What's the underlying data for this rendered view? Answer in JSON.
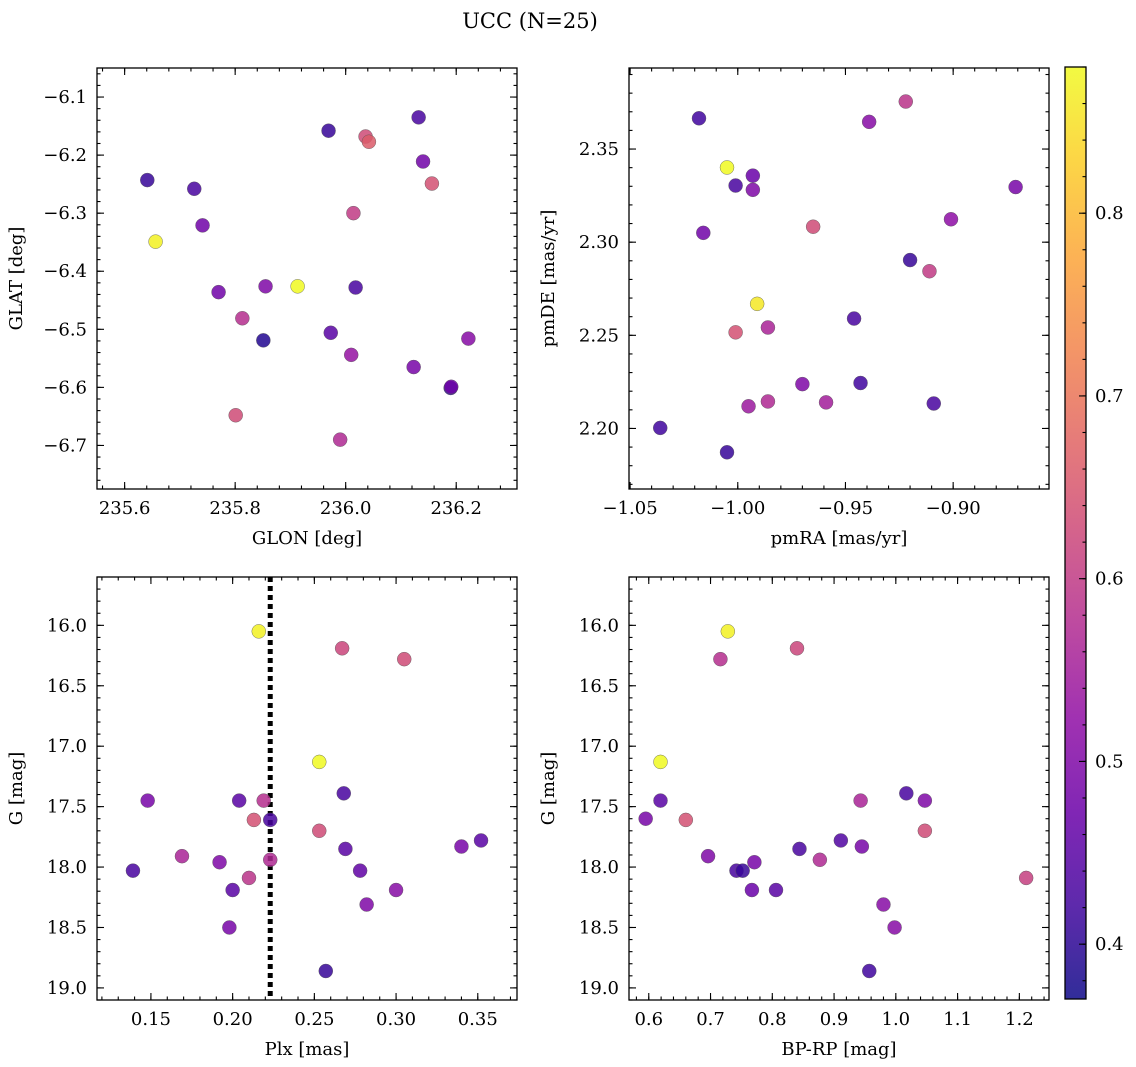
{
  "title": "UCC (N=25)",
  "colorbar": {
    "range": [
      0.37,
      0.88
    ],
    "ticks": [
      "0.4",
      "0.5",
      "0.6",
      "0.7",
      "0.8"
    ],
    "colormap": "plasma"
  },
  "chart_data": [
    {
      "type": "scatter",
      "xlabel": "GLON [deg]",
      "ylabel": "GLAT [deg]",
      "xlim": [
        235.55,
        236.31
      ],
      "ylim": [
        -6.775,
        -6.05
      ],
      "xticks": [
        "235.6",
        "235.8",
        "236.0",
        "236.2"
      ],
      "yticks": [
        "−6.1",
        "−6.2",
        "−6.3",
        "−6.4",
        "−6.5",
        "−6.6",
        "−6.7"
      ],
      "points": [
        {
          "x": 235.641,
          "y": -6.243,
          "c": 0.41
        },
        {
          "x": 235.656,
          "y": -6.349,
          "c": 0.87
        },
        {
          "x": 235.726,
          "y": -6.258,
          "c": 0.43
        },
        {
          "x": 235.741,
          "y": -6.321,
          "c": 0.48
        },
        {
          "x": 235.77,
          "y": -6.436,
          "c": 0.48
        },
        {
          "x": 235.801,
          "y": -6.648,
          "c": 0.63
        },
        {
          "x": 235.813,
          "y": -6.481,
          "c": 0.58
        },
        {
          "x": 235.851,
          "y": -6.519,
          "c": 0.39
        },
        {
          "x": 235.855,
          "y": -6.426,
          "c": 0.5
        },
        {
          "x": 235.913,
          "y": -6.426,
          "c": 0.88
        },
        {
          "x": 235.969,
          "y": -6.158,
          "c": 0.41
        },
        {
          "x": 235.973,
          "y": -6.506,
          "c": 0.45
        },
        {
          "x": 235.99,
          "y": -6.69,
          "c": 0.57
        },
        {
          "x": 236.01,
          "y": -6.544,
          "c": 0.53
        },
        {
          "x": 236.014,
          "y": -6.3,
          "c": 0.6
        },
        {
          "x": 236.018,
          "y": -6.428,
          "c": 0.43
        },
        {
          "x": 236.036,
          "y": -6.168,
          "c": 0.63
        },
        {
          "x": 236.042,
          "y": -6.177,
          "c": 0.66
        },
        {
          "x": 236.123,
          "y": -6.565,
          "c": 0.49
        },
        {
          "x": 236.132,
          "y": -6.135,
          "c": 0.43
        },
        {
          "x": 236.14,
          "y": -6.211,
          "c": 0.48
        },
        {
          "x": 236.156,
          "y": -6.249,
          "c": 0.64
        },
        {
          "x": 236.19,
          "y": -6.601,
          "c": 0.4
        },
        {
          "x": 236.191,
          "y": -6.599,
          "c": 0.48
        },
        {
          "x": 236.222,
          "y": -6.516,
          "c": 0.51
        }
      ]
    },
    {
      "type": "scatter",
      "xlabel": "pmRA [mas/yr]",
      "ylabel": "pmDE [mas/yr]",
      "xlim": [
        -1.0505,
        -0.8555
      ],
      "ylim": [
        2.1675,
        2.3935
      ],
      "xticks": [
        "−1.05",
        "−1.00",
        "−0.95",
        "−0.90"
      ],
      "yticks": [
        "2.20",
        "2.25",
        "2.30",
        "2.35"
      ],
      "points": [
        {
          "x": -1.036,
          "y": 2.2003,
          "c": 0.42
        },
        {
          "x": -1.018,
          "y": 2.3665,
          "c": 0.42
        },
        {
          "x": -1.016,
          "y": 2.305,
          "c": 0.48
        },
        {
          "x": -1.005,
          "y": 2.3401,
          "c": 0.88
        },
        {
          "x": -1.005,
          "y": 2.1872,
          "c": 0.41
        },
        {
          "x": -1.001,
          "y": 2.3304,
          "c": 0.43
        },
        {
          "x": -1.001,
          "y": 2.2516,
          "c": 0.64
        },
        {
          "x": -0.995,
          "y": 2.2119,
          "c": 0.54
        },
        {
          "x": -0.993,
          "y": 2.3357,
          "c": 0.47
        },
        {
          "x": -0.993,
          "y": 2.3281,
          "c": 0.5
        },
        {
          "x": -0.991,
          "y": 2.2669,
          "c": 0.86
        },
        {
          "x": -0.986,
          "y": 2.2542,
          "c": 0.56
        },
        {
          "x": -0.986,
          "y": 2.2145,
          "c": 0.57
        },
        {
          "x": -0.97,
          "y": 2.2238,
          "c": 0.5
        },
        {
          "x": -0.965,
          "y": 2.3083,
          "c": 0.63
        },
        {
          "x": -0.959,
          "y": 2.214,
          "c": 0.55
        },
        {
          "x": -0.946,
          "y": 2.259,
          "c": 0.43
        },
        {
          "x": -0.943,
          "y": 2.2244,
          "c": 0.42
        },
        {
          "x": -0.939,
          "y": 2.3646,
          "c": 0.51
        },
        {
          "x": -0.922,
          "y": 2.3755,
          "c": 0.59
        },
        {
          "x": -0.92,
          "y": 2.2904,
          "c": 0.41
        },
        {
          "x": -0.911,
          "y": 2.2844,
          "c": 0.6
        },
        {
          "x": -0.909,
          "y": 2.2134,
          "c": 0.43
        },
        {
          "x": -0.901,
          "y": 2.3123,
          "c": 0.52
        },
        {
          "x": -0.871,
          "y": 2.3296,
          "c": 0.49
        }
      ]
    },
    {
      "type": "scatter",
      "xlabel": "Plx [mas]",
      "ylabel": "G [mag]",
      "xlim": [
        0.117,
        0.374
      ],
      "ylim": [
        19.1,
        15.6
      ],
      "y_inverted": true,
      "vline": 0.223,
      "xticks": [
        "0.15",
        "0.20",
        "0.25",
        "0.30",
        "0.35"
      ],
      "yticks": [
        "16.0",
        "16.5",
        "17.0",
        "17.5",
        "18.0",
        "18.5",
        "19.0"
      ],
      "points": [
        {
          "x": 0.139,
          "y": 18.03,
          "c": 0.43
        },
        {
          "x": 0.148,
          "y": 17.45,
          "c": 0.49
        },
        {
          "x": 0.169,
          "y": 17.91,
          "c": 0.56
        },
        {
          "x": 0.192,
          "y": 17.96,
          "c": 0.5
        },
        {
          "x": 0.198,
          "y": 18.5,
          "c": 0.49
        },
        {
          "x": 0.2,
          "y": 18.19,
          "c": 0.45
        },
        {
          "x": 0.204,
          "y": 17.45,
          "c": 0.45
        },
        {
          "x": 0.21,
          "y": 18.09,
          "c": 0.59
        },
        {
          "x": 0.213,
          "y": 17.61,
          "c": 0.64
        },
        {
          "x": 0.216,
          "y": 16.05,
          "c": 0.87
        },
        {
          "x": 0.219,
          "y": 17.45,
          "c": 0.58
        },
        {
          "x": 0.223,
          "y": 17.61,
          "c": 0.43
        },
        {
          "x": 0.223,
          "y": 17.94,
          "c": 0.57
        },
        {
          "x": 0.253,
          "y": 17.13,
          "c": 0.88
        },
        {
          "x": 0.253,
          "y": 17.7,
          "c": 0.63
        },
        {
          "x": 0.257,
          "y": 18.86,
          "c": 0.41
        },
        {
          "x": 0.267,
          "y": 16.19,
          "c": 0.62
        },
        {
          "x": 0.268,
          "y": 17.39,
          "c": 0.43
        },
        {
          "x": 0.269,
          "y": 17.85,
          "c": 0.45
        },
        {
          "x": 0.278,
          "y": 18.03,
          "c": 0.46
        },
        {
          "x": 0.282,
          "y": 18.31,
          "c": 0.5
        },
        {
          "x": 0.3,
          "y": 18.19,
          "c": 0.51
        },
        {
          "x": 0.305,
          "y": 16.28,
          "c": 0.63
        },
        {
          "x": 0.34,
          "y": 17.83,
          "c": 0.49
        },
        {
          "x": 0.352,
          "y": 17.78,
          "c": 0.45
        }
      ]
    },
    {
      "type": "scatter",
      "xlabel": "BP-RP [mag]",
      "ylabel": "G [mag]",
      "xlim": [
        0.568,
        1.248
      ],
      "ylim": [
        19.1,
        15.6
      ],
      "y_inverted": true,
      "xticks": [
        "0.6",
        "0.7",
        "0.8",
        "0.9",
        "1.0",
        "1.1",
        "1.2"
      ],
      "yticks": [
        "16.0",
        "16.5",
        "17.0",
        "17.5",
        "18.0",
        "18.5",
        "19.0"
      ],
      "points": [
        {
          "x": 0.595,
          "y": 17.6,
          "c": 0.49
        },
        {
          "x": 0.619,
          "y": 17.13,
          "c": 0.88
        },
        {
          "x": 0.619,
          "y": 17.45,
          "c": 0.45
        },
        {
          "x": 0.66,
          "y": 17.61,
          "c": 0.64
        },
        {
          "x": 0.696,
          "y": 17.91,
          "c": 0.5
        },
        {
          "x": 0.716,
          "y": 16.28,
          "c": 0.58
        },
        {
          "x": 0.728,
          "y": 16.05,
          "c": 0.87
        },
        {
          "x": 0.742,
          "y": 18.03,
          "c": 0.43
        },
        {
          "x": 0.752,
          "y": 18.03,
          "c": 0.41
        },
        {
          "x": 0.767,
          "y": 18.19,
          "c": 0.47
        },
        {
          "x": 0.771,
          "y": 17.96,
          "c": 0.49
        },
        {
          "x": 0.806,
          "y": 18.19,
          "c": 0.45
        },
        {
          "x": 0.84,
          "y": 16.19,
          "c": 0.62
        },
        {
          "x": 0.844,
          "y": 17.85,
          "c": 0.43
        },
        {
          "x": 0.877,
          "y": 17.94,
          "c": 0.57
        },
        {
          "x": 0.911,
          "y": 17.78,
          "c": 0.44
        },
        {
          "x": 0.943,
          "y": 17.45,
          "c": 0.56
        },
        {
          "x": 0.945,
          "y": 17.83,
          "c": 0.49
        },
        {
          "x": 0.957,
          "y": 18.86,
          "c": 0.42
        },
        {
          "x": 0.98,
          "y": 18.31,
          "c": 0.51
        },
        {
          "x": 0.998,
          "y": 18.5,
          "c": 0.51
        },
        {
          "x": 1.017,
          "y": 17.39,
          "c": 0.43
        },
        {
          "x": 1.047,
          "y": 17.45,
          "c": 0.5
        },
        {
          "x": 1.047,
          "y": 17.7,
          "c": 0.63
        },
        {
          "x": 1.211,
          "y": 18.09,
          "c": 0.61
        }
      ]
    }
  ]
}
